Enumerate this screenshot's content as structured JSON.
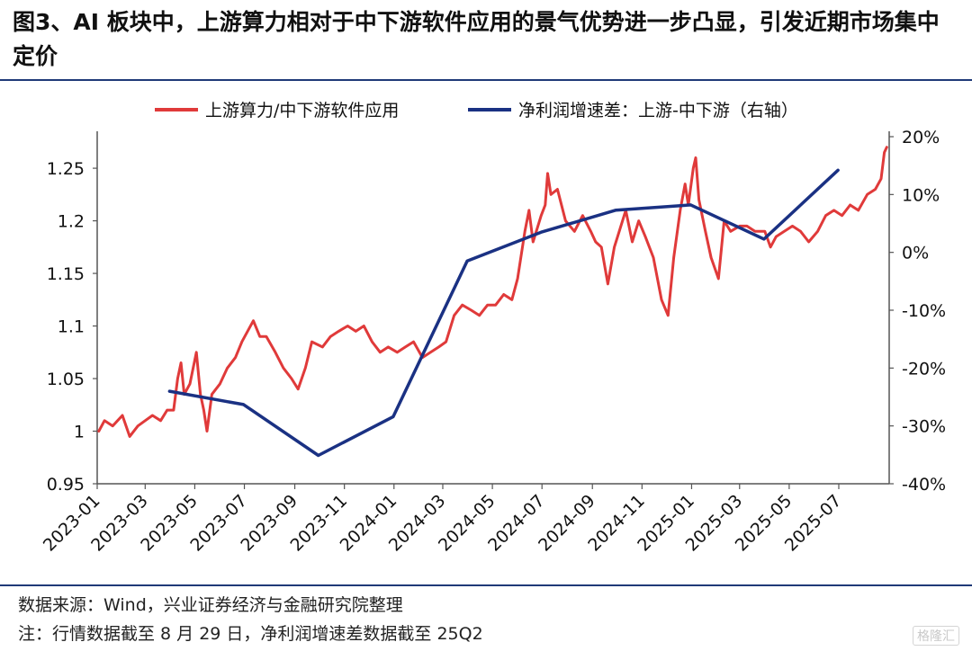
{
  "header": {
    "title": "图3、AI 板块中，上游算力相对于中下游软件应用的景气优势进一步凸显，引发近期市场集中定价"
  },
  "footer": {
    "source": "数据来源：Wind，兴业证券经济与金融研究院整理",
    "note": "注：行情数据截至 8 月 29 日，净利润增速差数据截至 25Q2"
  },
  "watermark": "格隆汇",
  "chart_data": {
    "type": "line",
    "legend_position": "top",
    "grid": false,
    "x_ticks": [
      "2023-01",
      "2023-03",
      "2023-05",
      "2023-07",
      "2023-09",
      "2023-11",
      "2024-01",
      "2024-03",
      "2024-05",
      "2024-07",
      "2024-09",
      "2024-11",
      "2025-01",
      "2025-03",
      "2025-05",
      "2025-07"
    ],
    "x_range": [
      "2023-01-01",
      "2025-09-01"
    ],
    "y_left": {
      "ticks": [
        "0.95",
        "1",
        "1.05",
        "1.1",
        "1.15",
        "1.2",
        "1.25"
      ],
      "range": [
        0.95,
        1.28
      ]
    },
    "y_right": {
      "ticks": [
        "-40%",
        "-30%",
        "-20%",
        "-10%",
        "0%",
        "10%",
        "20%"
      ],
      "range": [
        -40,
        20
      ]
    },
    "series": [
      {
        "name": "上游算力/中下游软件应用",
        "axis": "left",
        "color": "#e03a3a",
        "points": [
          [
            "2023-01-03",
            1.0
          ],
          [
            "2023-01-10",
            1.01
          ],
          [
            "2023-01-20",
            1.005
          ],
          [
            "2023-02-01",
            1.015
          ],
          [
            "2023-02-10",
            0.995
          ],
          [
            "2023-02-20",
            1.005
          ],
          [
            "2023-03-01",
            1.01
          ],
          [
            "2023-03-10",
            1.015
          ],
          [
            "2023-03-20",
            1.01
          ],
          [
            "2023-03-28",
            1.02
          ],
          [
            "2023-04-05",
            1.02
          ],
          [
            "2023-04-10",
            1.05
          ],
          [
            "2023-04-14",
            1.065
          ],
          [
            "2023-04-18",
            1.035
          ],
          [
            "2023-04-25",
            1.045
          ],
          [
            "2023-05-03",
            1.075
          ],
          [
            "2023-05-08",
            1.035
          ],
          [
            "2023-05-12",
            1.02
          ],
          [
            "2023-05-16",
            1.0
          ],
          [
            "2023-05-22",
            1.035
          ],
          [
            "2023-06-01",
            1.045
          ],
          [
            "2023-06-10",
            1.06
          ],
          [
            "2023-06-20",
            1.07
          ],
          [
            "2023-06-28",
            1.085
          ],
          [
            "2023-07-05",
            1.095
          ],
          [
            "2023-07-12",
            1.105
          ],
          [
            "2023-07-20",
            1.09
          ],
          [
            "2023-07-28",
            1.09
          ],
          [
            "2023-08-08",
            1.075
          ],
          [
            "2023-08-18",
            1.06
          ],
          [
            "2023-08-28",
            1.05
          ],
          [
            "2023-09-05",
            1.04
          ],
          [
            "2023-09-14",
            1.06
          ],
          [
            "2023-09-22",
            1.085
          ],
          [
            "2023-10-05",
            1.08
          ],
          [
            "2023-10-15",
            1.09
          ],
          [
            "2023-10-25",
            1.095
          ],
          [
            "2023-11-05",
            1.1
          ],
          [
            "2023-11-15",
            1.095
          ],
          [
            "2023-11-25",
            1.1
          ],
          [
            "2023-12-05",
            1.085
          ],
          [
            "2023-12-15",
            1.075
          ],
          [
            "2023-12-25",
            1.08
          ],
          [
            "2024-01-05",
            1.075
          ],
          [
            "2024-01-15",
            1.08
          ],
          [
            "2024-01-25",
            1.085
          ],
          [
            "2024-02-05",
            1.07
          ],
          [
            "2024-02-15",
            1.075
          ],
          [
            "2024-02-25",
            1.08
          ],
          [
            "2024-03-05",
            1.085
          ],
          [
            "2024-03-15",
            1.11
          ],
          [
            "2024-03-25",
            1.12
          ],
          [
            "2024-04-05",
            1.115
          ],
          [
            "2024-04-15",
            1.11
          ],
          [
            "2024-04-25",
            1.12
          ],
          [
            "2024-05-05",
            1.12
          ],
          [
            "2024-05-15",
            1.13
          ],
          [
            "2024-05-25",
            1.125
          ],
          [
            "2024-06-01",
            1.145
          ],
          [
            "2024-06-10",
            1.19
          ],
          [
            "2024-06-15",
            1.21
          ],
          [
            "2024-06-20",
            1.18
          ],
          [
            "2024-06-30",
            1.205
          ],
          [
            "2024-07-05",
            1.215
          ],
          [
            "2024-07-08",
            1.245
          ],
          [
            "2024-07-12",
            1.225
          ],
          [
            "2024-07-20",
            1.23
          ],
          [
            "2024-07-30",
            1.2
          ],
          [
            "2024-08-10",
            1.19
          ],
          [
            "2024-08-20",
            1.205
          ],
          [
            "2024-08-30",
            1.19
          ],
          [
            "2024-09-05",
            1.18
          ],
          [
            "2024-09-12",
            1.175
          ],
          [
            "2024-09-20",
            1.14
          ],
          [
            "2024-09-28",
            1.175
          ],
          [
            "2024-10-08",
            1.2
          ],
          [
            "2024-10-12",
            1.21
          ],
          [
            "2024-10-20",
            1.18
          ],
          [
            "2024-10-28",
            1.2
          ],
          [
            "2024-11-05",
            1.185
          ],
          [
            "2024-11-15",
            1.165
          ],
          [
            "2024-11-25",
            1.125
          ],
          [
            "2024-12-03",
            1.11
          ],
          [
            "2024-12-10",
            1.165
          ],
          [
            "2024-12-18",
            1.21
          ],
          [
            "2024-12-24",
            1.235
          ],
          [
            "2024-12-28",
            1.215
          ],
          [
            "2025-01-03",
            1.25
          ],
          [
            "2025-01-06",
            1.26
          ],
          [
            "2025-01-10",
            1.22
          ],
          [
            "2025-01-18",
            1.19
          ],
          [
            "2025-01-25",
            1.165
          ],
          [
            "2025-02-03",
            1.145
          ],
          [
            "2025-02-10",
            1.2
          ],
          [
            "2025-02-18",
            1.19
          ],
          [
            "2025-03-01",
            1.195
          ],
          [
            "2025-03-10",
            1.195
          ],
          [
            "2025-03-20",
            1.19
          ],
          [
            "2025-04-01",
            1.19
          ],
          [
            "2025-04-08",
            1.175
          ],
          [
            "2025-04-15",
            1.185
          ],
          [
            "2025-04-25",
            1.19
          ],
          [
            "2025-05-05",
            1.195
          ],
          [
            "2025-05-15",
            1.19
          ],
          [
            "2025-05-25",
            1.18
          ],
          [
            "2025-06-05",
            1.19
          ],
          [
            "2025-06-15",
            1.205
          ],
          [
            "2025-06-25",
            1.21
          ],
          [
            "2025-07-05",
            1.205
          ],
          [
            "2025-07-15",
            1.215
          ],
          [
            "2025-07-25",
            1.21
          ],
          [
            "2025-08-05",
            1.225
          ],
          [
            "2025-08-15",
            1.23
          ],
          [
            "2025-08-22",
            1.24
          ],
          [
            "2025-08-26",
            1.265
          ],
          [
            "2025-08-29",
            1.27
          ]
        ]
      },
      {
        "name": "净利润增速差：上游-中下游（右轴）",
        "axis": "right",
        "color": "#1a3183",
        "points": [
          [
            "2023-03-31",
            -24.0
          ],
          [
            "2023-06-30",
            -26.3
          ],
          [
            "2023-09-30",
            -35.1
          ],
          [
            "2023-12-31",
            -28.4
          ],
          [
            "2024-03-31",
            -1.5
          ],
          [
            "2024-06-30",
            3.5
          ],
          [
            "2024-09-30",
            7.3
          ],
          [
            "2024-12-31",
            8.2
          ],
          [
            "2025-03-31",
            2.3
          ],
          [
            "2025-06-30",
            14.2
          ]
        ]
      }
    ]
  }
}
